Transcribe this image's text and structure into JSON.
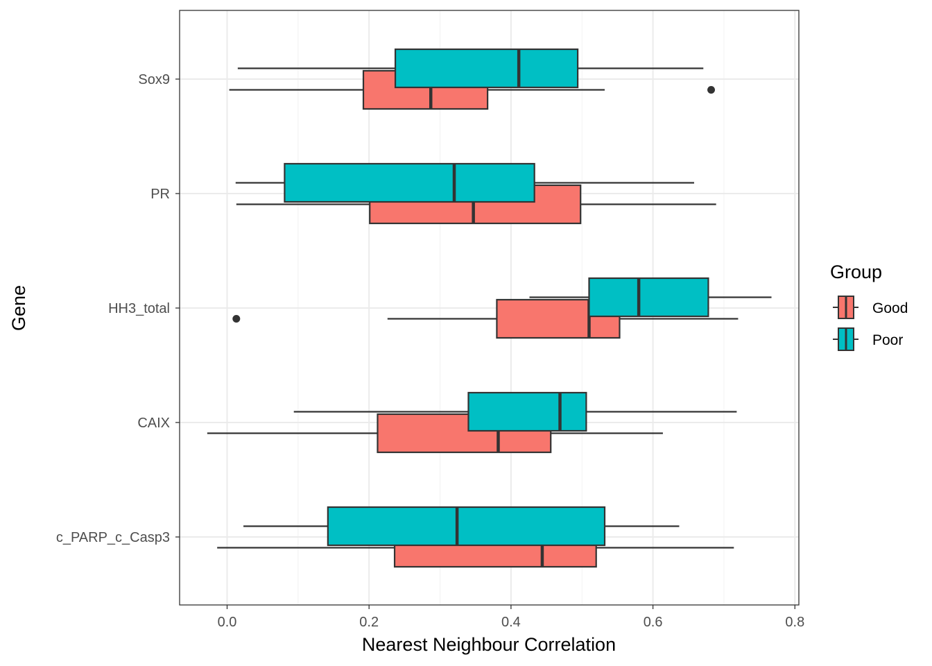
{
  "chart_data": {
    "type": "boxplot",
    "orientation": "horizontal",
    "title": "",
    "xlabel": "Nearest Neighbour Correlation",
    "ylabel": "Gene",
    "xlim": [
      -0.068,
      0.806
    ],
    "x_ticks": [
      0.0,
      0.2,
      0.4,
      0.6,
      0.8
    ],
    "x_tick_labels": [
      "0.0",
      "0.2",
      "0.4",
      "0.6",
      "0.8"
    ],
    "grid": true,
    "categories": [
      "Sox9",
      "PR",
      "HH3_total",
      "CAIX",
      "c_PARP_c_Casp3"
    ],
    "legend": {
      "title": "Group",
      "placement": "right",
      "entries": [
        {
          "name": "Good",
          "color": "#F8766D"
        },
        {
          "name": "Poor",
          "color": "#00BFC4"
        }
      ]
    },
    "series": [
      {
        "name": "Good",
        "color": "#F8766D",
        "boxes": [
          {
            "category": "Sox9",
            "whisker_low": 0.003,
            "q1": 0.192,
            "median": 0.287,
            "q3": 0.367,
            "whisker_high": 0.532,
            "outliers": [
              0.682
            ]
          },
          {
            "category": "PR",
            "whisker_low": 0.013,
            "q1": 0.201,
            "median": 0.347,
            "q3": 0.498,
            "whisker_high": 0.689,
            "outliers": []
          },
          {
            "category": "HH3_total",
            "whisker_low": 0.226,
            "q1": 0.38,
            "median": 0.51,
            "q3": 0.553,
            "whisker_high": 0.72,
            "outliers": [
              0.013
            ]
          },
          {
            "category": "CAIX",
            "whisker_low": -0.028,
            "q1": 0.212,
            "median": 0.382,
            "q3": 0.456,
            "whisker_high": 0.614,
            "outliers": []
          },
          {
            "category": "c_PARP_c_Casp3",
            "whisker_low": -0.014,
            "q1": 0.236,
            "median": 0.444,
            "q3": 0.52,
            "whisker_high": 0.714,
            "outliers": []
          }
        ]
      },
      {
        "name": "Poor",
        "color": "#00BFC4",
        "boxes": [
          {
            "category": "Sox9",
            "whisker_low": 0.015,
            "q1": 0.237,
            "median": 0.411,
            "q3": 0.494,
            "whisker_high": 0.671,
            "outliers": []
          },
          {
            "category": "PR",
            "whisker_low": 0.012,
            "q1": 0.081,
            "median": 0.32,
            "q3": 0.433,
            "whisker_high": 0.658,
            "outliers": []
          },
          {
            "category": "HH3_total",
            "whisker_low": 0.426,
            "q1": 0.51,
            "median": 0.58,
            "q3": 0.678,
            "whisker_high": 0.767,
            "outliers": []
          },
          {
            "category": "CAIX",
            "whisker_low": 0.094,
            "q1": 0.34,
            "median": 0.469,
            "q3": 0.506,
            "whisker_high": 0.718,
            "outliers": []
          },
          {
            "category": "c_PARP_c_Casp3",
            "whisker_low": 0.023,
            "q1": 0.142,
            "median": 0.324,
            "q3": 0.532,
            "whisker_high": 0.637,
            "outliers": []
          }
        ]
      }
    ]
  }
}
